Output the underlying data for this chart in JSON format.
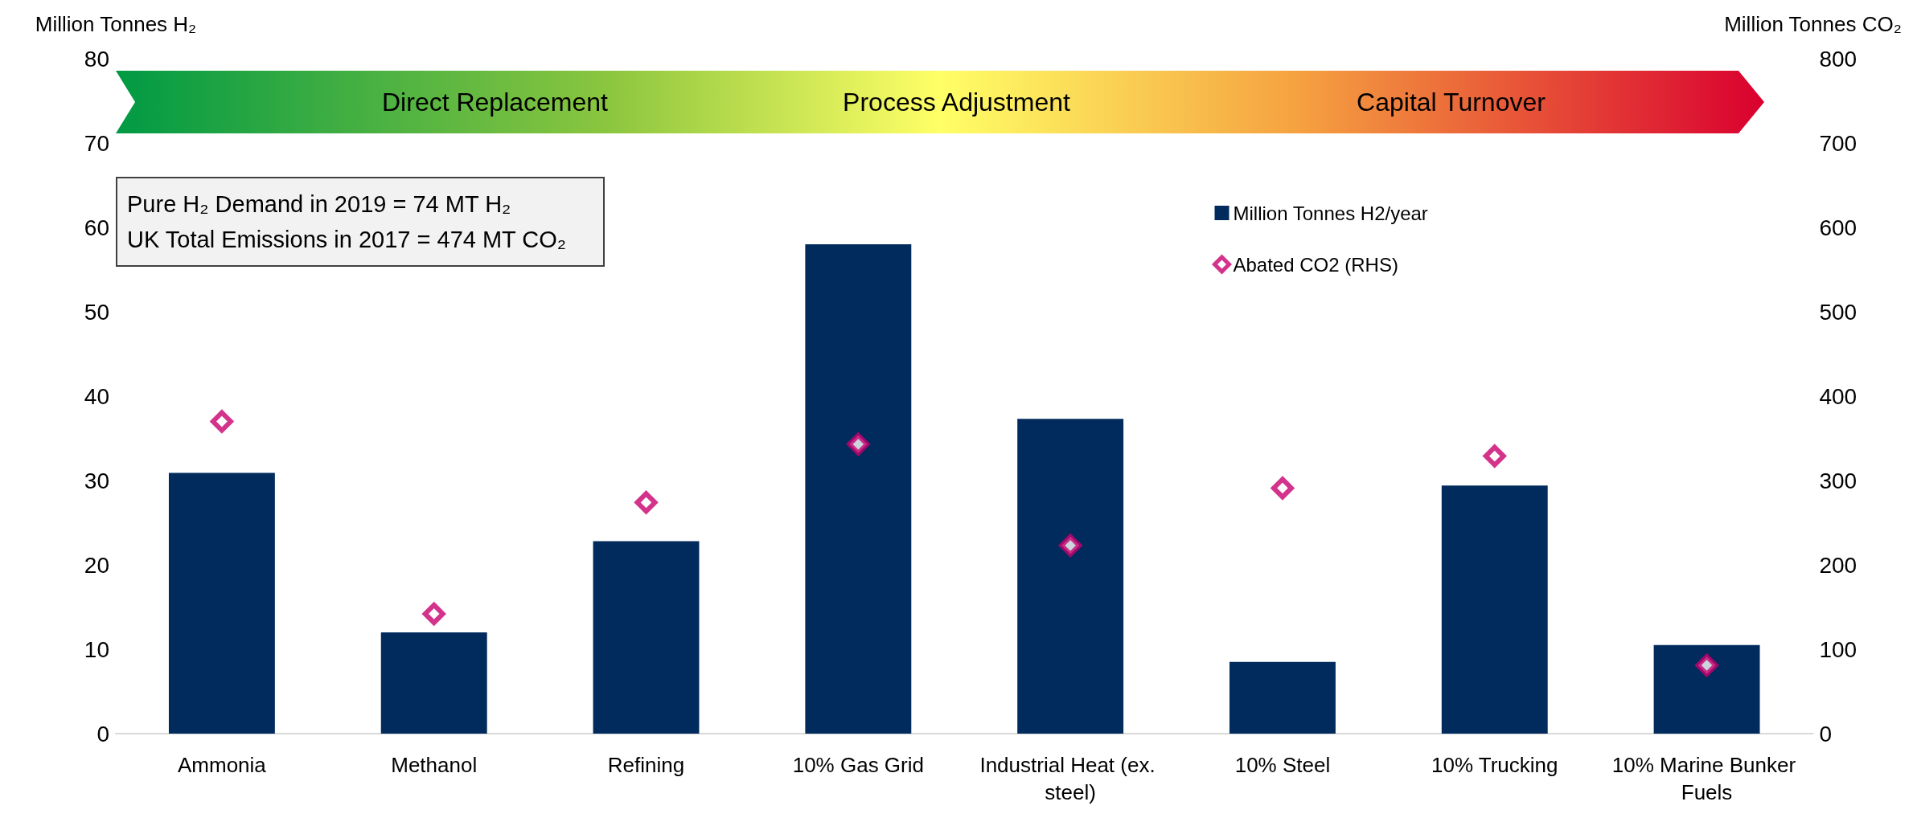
{
  "chart_data": {
    "type": "bar",
    "categories": [
      "Ammonia",
      "Methanol",
      "Refining",
      "10% Gas Grid",
      "Industrial Heat (ex. steel)",
      "10% Steel",
      "10% Trucking",
      "10% Marine Bunker Fuels"
    ],
    "series": [
      {
        "name": "Million Tonnes H2/year",
        "color": "#002b5c",
        "values": [
          30.9,
          12,
          22.8,
          58,
          37.3,
          8.5,
          29.4,
          10.5
        ]
      },
      {
        "name": "Abated CO2 (RHS)",
        "type": "scatter",
        "axis": "y2",
        "color": "#c8006e",
        "values": [
          370,
          142,
          274,
          343,
          223,
          291,
          329,
          81
        ]
      }
    ],
    "ylabel": "Million Tonnes H₂",
    "y2label": "Million Tonnes CO₂",
    "ylim": [
      0,
      80
    ],
    "yticks": [
      0,
      10,
      20,
      30,
      40,
      50,
      60,
      70,
      80
    ],
    "y2lim": [
      0,
      800
    ],
    "y2ticks": [
      0,
      100,
      200,
      300,
      400,
      500,
      600,
      700,
      800
    ],
    "annotations": [
      "Direct Replacement",
      "Process Adjustment",
      "Capital Turnover",
      "Pure H₂ Demand in 2019 = 74 MT H₂",
      "UK Total Emissions in 2017 = 474 MT CO₂"
    ],
    "marker": "diamond",
    "legend": "top right",
    "grid": false
  }
}
